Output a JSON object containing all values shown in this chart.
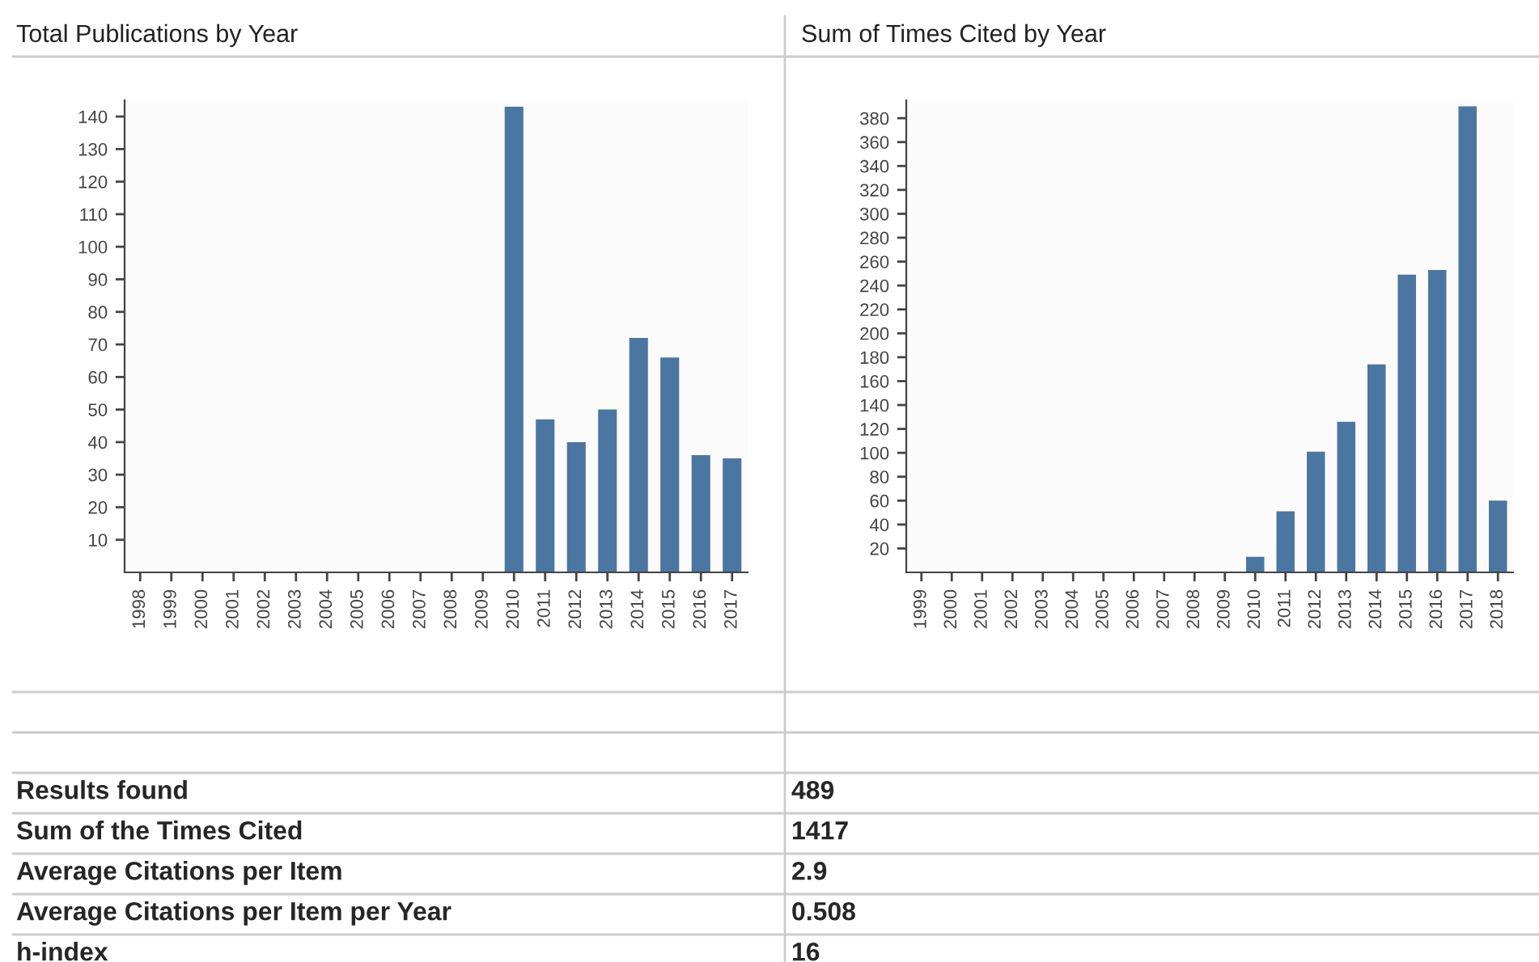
{
  "chart_data": [
    {
      "type": "bar",
      "title": "Total Publications by Year",
      "categories": [
        "1998",
        "1999",
        "2000",
        "2001",
        "2002",
        "2003",
        "2004",
        "2005",
        "2006",
        "2007",
        "2008",
        "2009",
        "2010",
        "2011",
        "2012",
        "2013",
        "2014",
        "2015",
        "2016",
        "2017"
      ],
      "values": [
        0,
        0,
        0,
        0,
        0,
        0,
        0,
        0,
        0,
        0,
        0,
        0,
        143,
        47,
        40,
        50,
        72,
        66,
        36,
        35
      ],
      "color": "#4b76a1",
      "ylim": [
        0,
        145
      ],
      "yticks": [
        10,
        20,
        30,
        40,
        50,
        60,
        70,
        80,
        90,
        100,
        110,
        120,
        130,
        140
      ],
      "grid": false
    },
    {
      "type": "bar",
      "title": "Sum of Times Cited by Year",
      "categories": [
        "1999",
        "2000",
        "2001",
        "2002",
        "2003",
        "2004",
        "2005",
        "2006",
        "2007",
        "2008",
        "2009",
        "2010",
        "2011",
        "2012",
        "2013",
        "2014",
        "2015",
        "2016",
        "2017",
        "2018"
      ],
      "values": [
        0,
        0,
        0,
        0,
        0,
        0,
        0,
        0,
        0,
        0,
        0,
        13,
        51,
        101,
        126,
        174,
        249,
        253,
        390,
        60
      ],
      "color": "#4b76a1",
      "ylim": [
        0,
        395
      ],
      "yticks": [
        20,
        40,
        60,
        80,
        100,
        120,
        140,
        160,
        180,
        200,
        220,
        240,
        260,
        280,
        300,
        320,
        340,
        360,
        380
      ],
      "grid": false
    },
    {
      "type": "other",
      "annotations": [
        "Results found",
        "489",
        "Sum of the Times Cited",
        "1417",
        "Average Citations per Item",
        "2.9",
        "Average Citations per Item per Year",
        "0.508",
        "h-index",
        "16"
      ]
    }
  ]
}
